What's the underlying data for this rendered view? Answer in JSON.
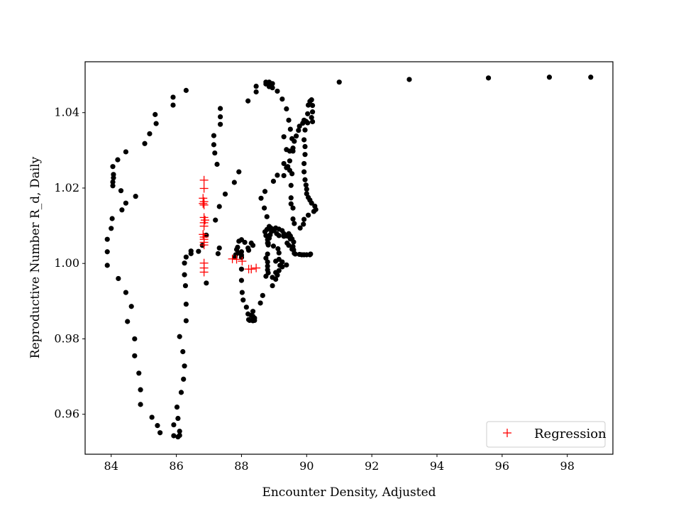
{
  "chart_data": {
    "type": "scatter",
    "title": "",
    "xlabel": "Encounter Density, Adjusted",
    "ylabel": "Reproductive Number R_d, Daily",
    "xlim": [
      83.2,
      99.4
    ],
    "ylim": [
      0.9494,
      1.0535
    ],
    "xticks": [
      84,
      86,
      88,
      90,
      92,
      94,
      96,
      98
    ],
    "yticks": [
      0.96,
      0.98,
      1.0,
      1.02,
      1.04
    ],
    "ytick_labels": [
      "0.96",
      "0.98",
      "1.00",
      "1.02",
      "1.04"
    ],
    "grid": false,
    "legend_position": "lower-right",
    "series": [
      {
        "marker": "dot",
        "color": "#000000",
        "points": [
          [
            83.88,
            0.9995
          ],
          [
            83.88,
            1.0031
          ],
          [
            83.88,
            1.0064
          ],
          [
            84.0,
            1.0093
          ],
          [
            84.03,
            1.0119
          ],
          [
            84.05,
            1.0206
          ],
          [
            84.05,
            1.0216
          ],
          [
            84.07,
            1.0227
          ],
          [
            84.07,
            1.0236
          ],
          [
            84.05,
            1.0257
          ],
          [
            84.2,
            1.0275
          ],
          [
            84.45,
            1.0296
          ],
          [
            85.03,
            1.0318
          ],
          [
            85.18,
            1.0344
          ],
          [
            85.38,
            1.0371
          ],
          [
            85.35,
            1.0395
          ],
          [
            85.9,
            1.042
          ],
          [
            85.9,
            1.0441
          ],
          [
            86.3,
            1.0459
          ],
          [
            84.75,
            1.0178
          ],
          [
            84.45,
            1.016
          ],
          [
            84.33,
            1.0142
          ],
          [
            84.3,
            1.0193
          ],
          [
            84.22,
            0.996
          ],
          [
            84.45,
            0.9923
          ],
          [
            84.62,
            0.9886
          ],
          [
            84.5,
            0.9846
          ],
          [
            84.72,
            0.98
          ],
          [
            84.72,
            0.9755
          ],
          [
            84.85,
            0.9709
          ],
          [
            84.9,
            0.9665
          ],
          [
            84.9,
            0.9626
          ],
          [
            85.25,
            0.9592
          ],
          [
            85.42,
            0.957
          ],
          [
            85.5,
            0.9551
          ],
          [
            85.92,
            0.9572
          ],
          [
            85.92,
            0.9543
          ],
          [
            86.05,
            0.954
          ],
          [
            86.05,
            0.9589
          ],
          [
            86.02,
            0.9619
          ],
          [
            86.1,
            0.9555
          ],
          [
            86.1,
            0.9544
          ],
          [
            86.15,
            0.9658
          ],
          [
            86.22,
            0.9693
          ],
          [
            86.25,
            0.9728
          ],
          [
            86.2,
            0.9766
          ],
          [
            86.1,
            0.9806
          ],
          [
            86.3,
            0.9848
          ],
          [
            86.3,
            0.9892
          ],
          [
            86.28,
            0.9941
          ],
          [
            86.25,
            0.997
          ],
          [
            86.25,
            1.0001
          ],
          [
            86.3,
            1.0017
          ],
          [
            86.45,
            1.0026
          ],
          [
            86.45,
            1.0033
          ],
          [
            86.68,
            1.0032
          ],
          [
            86.8,
            1.0048
          ],
          [
            86.92,
            1.0075
          ],
          [
            86.92,
            0.9948
          ],
          [
            87.28,
            1.0026
          ],
          [
            87.2,
            1.0115
          ],
          [
            87.32,
            1.0151
          ],
          [
            87.5,
            1.0184
          ],
          [
            87.78,
            1.0215
          ],
          [
            87.92,
            1.0243
          ],
          [
            87.25,
            1.0263
          ],
          [
            87.18,
            1.0293
          ],
          [
            87.15,
            1.0315
          ],
          [
            87.15,
            1.0339
          ],
          [
            87.35,
            1.0369
          ],
          [
            87.35,
            1.0389
          ],
          [
            87.35,
            1.0411
          ],
          [
            87.32,
            1.0041
          ],
          [
            88.2,
            1.0431
          ],
          [
            88.45,
            1.0455
          ],
          [
            88.45,
            1.047
          ],
          [
            88.75,
            1.0476
          ],
          [
            88.75,
            1.0481
          ],
          [
            88.85,
            1.0481
          ],
          [
            88.95,
            1.0477
          ],
          [
            88.85,
            1.0469
          ],
          [
            88.95,
            1.0466
          ],
          [
            89.1,
            1.0457
          ],
          [
            89.25,
            1.0436
          ],
          [
            89.38,
            1.041
          ],
          [
            89.45,
            1.038
          ],
          [
            89.5,
            1.0356
          ],
          [
            89.55,
            1.0331
          ],
          [
            89.58,
            1.0306
          ],
          [
            89.48,
            1.0298
          ],
          [
            89.48,
            1.0272
          ],
          [
            89.42,
            1.0257
          ],
          [
            89.48,
            1.0247
          ],
          [
            89.55,
            1.0238
          ],
          [
            89.52,
            1.0207
          ],
          [
            89.52,
            1.0174
          ],
          [
            89.52,
            1.0158
          ],
          [
            89.58,
            1.0147
          ],
          [
            89.58,
            1.0118
          ],
          [
            89.62,
            1.0106
          ],
          [
            89.8,
            1.0094
          ],
          [
            89.9,
            1.0104
          ],
          [
            89.92,
            1.0117
          ],
          [
            90.05,
            1.0128
          ],
          [
            90.22,
            1.0138
          ],
          [
            90.28,
            1.0143
          ],
          [
            90.25,
            1.0152
          ],
          [
            90.15,
            1.016
          ],
          [
            90.1,
            1.0168
          ],
          [
            90.05,
            1.0175
          ],
          [
            90.0,
            1.0185
          ],
          [
            90.0,
            1.0197
          ],
          [
            89.98,
            1.0208
          ],
          [
            89.95,
            1.0222
          ],
          [
            89.92,
            1.0243
          ],
          [
            89.92,
            1.0265
          ],
          [
            89.95,
            1.0289
          ],
          [
            89.95,
            1.031
          ],
          [
            89.92,
            1.0328
          ],
          [
            89.95,
            1.0354
          ],
          [
            89.98,
            1.0377
          ],
          [
            90.03,
            1.0397
          ],
          [
            90.05,
            1.042
          ],
          [
            90.1,
            1.043
          ],
          [
            90.15,
            1.0434
          ],
          [
            90.18,
            1.0419
          ],
          [
            90.18,
            1.0402
          ],
          [
            90.15,
            1.0387
          ],
          [
            90.18,
            1.0376
          ],
          [
            90.03,
            1.0373
          ],
          [
            89.92,
            1.038
          ],
          [
            89.88,
            1.0372
          ],
          [
            89.78,
            1.0364
          ],
          [
            89.75,
            1.0353
          ],
          [
            89.68,
            1.0338
          ],
          [
            89.62,
            1.0324
          ],
          [
            89.58,
            1.0298
          ],
          [
            89.3,
            1.0336
          ],
          [
            89.38,
            1.0302
          ],
          [
            89.38,
            1.0254
          ],
          [
            89.3,
            1.0265
          ],
          [
            89.3,
            1.0233
          ],
          [
            89.1,
            1.0234
          ],
          [
            88.98,
            1.0218
          ],
          [
            88.72,
            1.0191
          ],
          [
            88.6,
            1.0173
          ],
          [
            88.7,
            1.0147
          ],
          [
            88.78,
            1.0124
          ],
          [
            88.72,
            1.0084
          ],
          [
            88.75,
            1.0074
          ],
          [
            88.8,
            1.0063
          ],
          [
            88.8,
            1.0054
          ],
          [
            88.82,
            1.0049
          ],
          [
            88.98,
            1.0046
          ],
          [
            89.12,
            1.0039
          ],
          [
            89.15,
            1.0028
          ],
          [
            89.15,
            1.0011
          ],
          [
            89.18,
            0.9995
          ],
          [
            89.05,
            0.9976
          ],
          [
            89.05,
            0.9958
          ],
          [
            88.95,
            0.9941
          ],
          [
            88.65,
            0.9915
          ],
          [
            88.58,
            0.9895
          ],
          [
            88.35,
            0.9873
          ],
          [
            88.3,
            0.9862
          ],
          [
            88.35,
            0.986
          ],
          [
            88.4,
            0.9855
          ],
          [
            88.4,
            0.9849
          ],
          [
            88.35,
            0.9848
          ],
          [
            88.35,
            0.9851
          ],
          [
            88.25,
            0.9849
          ],
          [
            88.22,
            0.9851
          ],
          [
            88.2,
            0.9866
          ],
          [
            88.15,
            0.9884
          ],
          [
            88.05,
            0.9903
          ],
          [
            88.02,
            0.9923
          ],
          [
            88.0,
            0.9955
          ],
          [
            88.0,
            0.9985
          ],
          [
            88.0,
            1.0016
          ],
          [
            87.9,
            1.0028
          ],
          [
            88.0,
            1.0031
          ],
          [
            88.22,
            1.0035
          ],
          [
            88.35,
            1.0048
          ],
          [
            88.3,
            1.0054
          ],
          [
            88.1,
            1.0056
          ],
          [
            88.0,
            1.0063
          ],
          [
            87.92,
            1.0059
          ],
          [
            87.88,
            1.0043
          ],
          [
            87.85,
            1.0037
          ],
          [
            87.82,
            1.0023
          ],
          [
            87.8,
            1.0016
          ],
          [
            88.0,
            1.0022
          ],
          [
            88.2,
            1.0041
          ],
          [
            88.78,
            1.009
          ],
          [
            88.85,
            1.0098
          ],
          [
            88.9,
            1.0094
          ],
          [
            89.0,
            1.0087
          ],
          [
            89.08,
            1.0079
          ],
          [
            89.15,
            1.0074
          ],
          [
            89.3,
            1.0072
          ],
          [
            89.35,
            1.0075
          ],
          [
            89.45,
            1.0079
          ],
          [
            89.5,
            1.0073
          ],
          [
            89.5,
            1.0065
          ],
          [
            89.4,
            1.0054
          ],
          [
            89.45,
            1.0048
          ],
          [
            89.55,
            1.0038
          ],
          [
            89.6,
            1.0036
          ],
          [
            89.62,
            1.0027
          ],
          [
            89.65,
            1.0025
          ],
          [
            89.78,
            1.0024
          ],
          [
            89.85,
            1.0023
          ],
          [
            89.92,
            1.0023
          ],
          [
            90.0,
            1.0023
          ],
          [
            90.1,
            1.0023
          ],
          [
            90.12,
            1.0025
          ],
          [
            89.58,
            1.0045
          ],
          [
            89.6,
            1.0057
          ],
          [
            89.55,
            1.0065
          ],
          [
            89.48,
            1.0069
          ],
          [
            89.38,
            1.0073
          ],
          [
            89.3,
            1.0079
          ],
          [
            89.25,
            1.0087
          ],
          [
            89.15,
            1.0091
          ],
          [
            89.05,
            1.0094
          ],
          [
            89.0,
            1.0091
          ],
          [
            88.92,
            1.0085
          ],
          [
            88.88,
            1.0076
          ],
          [
            88.85,
            1.0067
          ],
          [
            88.82,
            1.0054
          ],
          [
            88.8,
            1.0025
          ],
          [
            88.75,
            1.0014
          ],
          [
            88.8,
            1.0004
          ],
          [
            88.8,
            0.9993
          ],
          [
            88.8,
            0.9983
          ],
          [
            88.82,
            0.9975
          ],
          [
            88.75,
            0.9966
          ],
          [
            88.95,
            0.9963
          ],
          [
            89.1,
            0.9969
          ],
          [
            89.15,
            0.9981
          ],
          [
            89.05,
            1.0006
          ],
          [
            89.25,
            1.0004
          ],
          [
            89.25,
            0.9991
          ],
          [
            89.38,
            0.9996
          ],
          [
            91.0,
            1.0481
          ],
          [
            93.15,
            1.0488
          ],
          [
            95.58,
            1.0492
          ],
          [
            97.45,
            1.0494
          ],
          [
            98.72,
            1.0494
          ]
        ]
      },
      {
        "name": "Regression",
        "marker": "plus",
        "color": "#ff0000",
        "points": [
          [
            86.85,
            1.0221
          ],
          [
            86.85,
            1.0199
          ],
          [
            86.82,
            1.0173
          ],
          [
            86.85,
            1.0164
          ],
          [
            86.82,
            1.0159
          ],
          [
            86.85,
            1.0155
          ],
          [
            86.85,
            1.0122
          ],
          [
            86.88,
            1.0115
          ],
          [
            86.85,
            1.0108
          ],
          [
            86.85,
            1.0099
          ],
          [
            86.82,
            1.0077
          ],
          [
            86.85,
            1.007
          ],
          [
            86.85,
            1.0064
          ],
          [
            86.85,
            1.0056
          ],
          [
            86.85,
            1.0049
          ],
          [
            86.85,
            1.0001
          ],
          [
            86.85,
            0.9988
          ],
          [
            86.85,
            0.9977
          ],
          [
            87.72,
            1.0012
          ],
          [
            87.85,
            1.0011
          ],
          [
            88.02,
            1.0006
          ],
          [
            88.22,
            0.9985
          ],
          [
            88.3,
            0.9985
          ],
          [
            88.45,
            0.9988
          ]
        ]
      }
    ]
  }
}
